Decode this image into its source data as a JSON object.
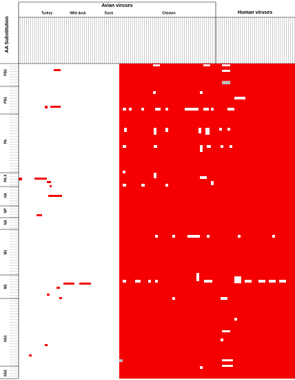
{
  "header": {
    "avian": "Avian viruses",
    "human": "Human viruses",
    "groups": [
      "Turkey",
      "Wild duck",
      "Duck",
      "Chicken"
    ]
  },
  "row_title": "AA Substitution",
  "genes": [
    "PB2",
    "PB1",
    "PA",
    "PA-X",
    "HA",
    "NP",
    "NA",
    "M1",
    "M2",
    "NS1",
    "NS2"
  ]
}
